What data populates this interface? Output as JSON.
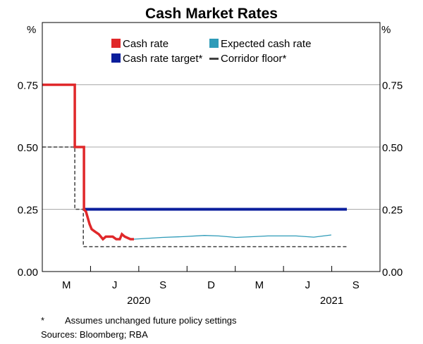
{
  "chart_data": {
    "type": "line",
    "title": "Cash Market Rates",
    "ylabel_left": "%",
    "ylabel_right": "%",
    "ylim": [
      0,
      1.0
    ],
    "yticks": [
      0,
      0.25,
      0.5,
      0.75
    ],
    "ytick_labels": [
      "0.00",
      "0.25",
      "0.50",
      "0.75"
    ],
    "x_units": "months since Jan 2020",
    "xlim": [
      0,
      21
    ],
    "x_quarter_ticks": [
      3,
      6,
      9,
      12,
      15,
      18
    ],
    "x_month_labels": [
      {
        "label": "M",
        "x": 1.5
      },
      {
        "label": "J",
        "x": 4.5
      },
      {
        "label": "S",
        "x": 7.5
      },
      {
        "label": "D",
        "x": 10.5
      },
      {
        "label": "M",
        "x": 13.5
      },
      {
        "label": "J",
        "x": 16.5
      },
      {
        "label": "S",
        "x": 19.5
      }
    ],
    "x_year_labels": [
      {
        "label": "2020",
        "x": 6
      },
      {
        "label": "2021",
        "x": 18
      }
    ],
    "grid": true,
    "legend_placement": "top-center",
    "series": [
      {
        "name": "Corridor floor*",
        "color": "#404040",
        "style": "dashed",
        "points": [
          [
            0,
            0.5
          ],
          [
            2.02,
            0.5
          ],
          [
            2.02,
            0.25
          ],
          [
            2.55,
            0.25
          ],
          [
            2.55,
            0.1
          ],
          [
            18.94,
            0.1
          ]
        ]
      },
      {
        "name": "Cash rate target*",
        "color": "#0A1E9C",
        "style": "solid",
        "points": [
          [
            2.59,
            0.25
          ],
          [
            18.94,
            0.25
          ]
        ]
      },
      {
        "name": "Expected cash rate",
        "color": "#2E9BB8",
        "style": "solid",
        "points": [
          [
            5.7,
            0.13
          ],
          [
            7.45,
            0.137
          ],
          [
            8.77,
            0.14
          ],
          [
            10.08,
            0.145
          ],
          [
            10.96,
            0.143
          ],
          [
            12.05,
            0.137
          ],
          [
            13.15,
            0.14
          ],
          [
            14.03,
            0.143
          ],
          [
            15.78,
            0.143
          ],
          [
            16.88,
            0.138
          ],
          [
            17.97,
            0.147
          ]
        ]
      },
      {
        "name": "Cash rate",
        "color": "#E0282A",
        "style": "solid",
        "points": [
          [
            0,
            0.75
          ],
          [
            2.02,
            0.75
          ],
          [
            2.02,
            0.5
          ],
          [
            2.59,
            0.5
          ],
          [
            2.59,
            0.25
          ],
          [
            2.72,
            0.24
          ],
          [
            2.94,
            0.19
          ],
          [
            3.07,
            0.17
          ],
          [
            3.29,
            0.16
          ],
          [
            3.51,
            0.15
          ],
          [
            3.77,
            0.13
          ],
          [
            3.95,
            0.14
          ],
          [
            4.38,
            0.14
          ],
          [
            4.6,
            0.13
          ],
          [
            4.82,
            0.13
          ],
          [
            4.95,
            0.15
          ],
          [
            5.13,
            0.14
          ],
          [
            5.48,
            0.13
          ],
          [
            5.7,
            0.13
          ]
        ]
      }
    ]
  },
  "legend": [
    {
      "label": "Cash rate",
      "color": "#E0282A",
      "kind": "box"
    },
    {
      "label": "Expected cash rate",
      "color": "#2E9BB8",
      "kind": "box"
    },
    {
      "label": "Cash rate target*",
      "color": "#0A1E9C",
      "kind": "box"
    },
    {
      "label": "Corridor floor*",
      "color": "#404040",
      "kind": "line"
    }
  ],
  "notes": {
    "footnote_mark": "*",
    "footnote_text": "Assumes unchanged future policy settings",
    "sources": "Sources:  Bloomberg; RBA"
  }
}
